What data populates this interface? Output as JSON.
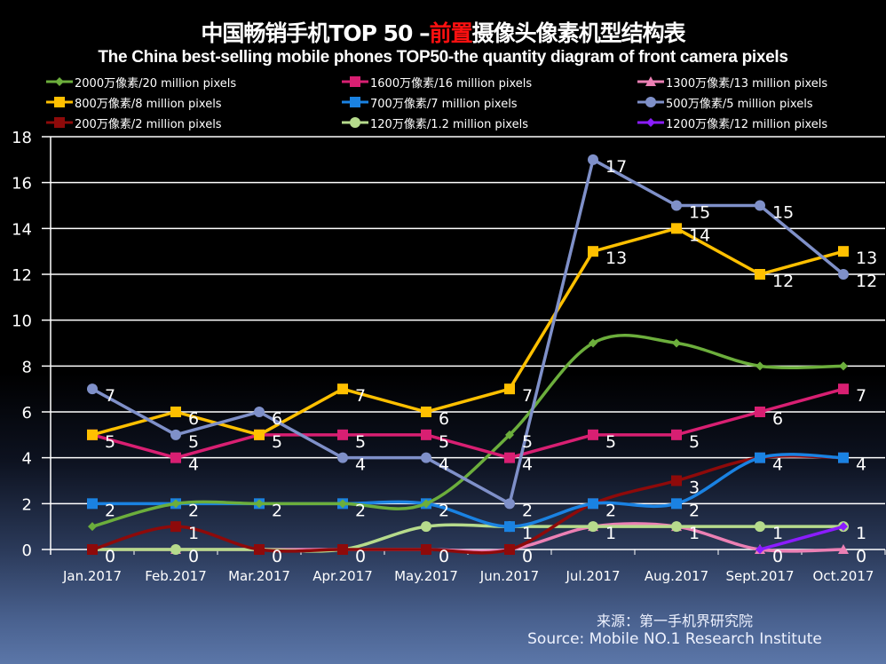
{
  "title": {
    "cn_part1": "中国畅销手机TOP 50 –",
    "cn_highlight": "前置",
    "cn_part2": "摄像头像素机型结构表",
    "en": "The China best-selling mobile phones TOP50-the quantity diagram of front camera pixels"
  },
  "source": {
    "cn": "来源：第一手机界研究院",
    "en": "Source: Mobile NO.1 Research Institute"
  },
  "chart_data": {
    "type": "line",
    "title": "中国畅销手机TOP 50 –前置摄像头像素机型结构表",
    "subtitle": "The China best-selling mobile phones TOP50-the quantity diagram of front camera pixels",
    "xlabel": "",
    "ylabel": "",
    "ylim": [
      0,
      18
    ],
    "yticks": [
      "0",
      "2",
      "4",
      "6",
      "8",
      "10",
      "12",
      "14",
      "16",
      "18"
    ],
    "grid": true,
    "legend_position": "top",
    "categories": [
      "Jan.2017",
      "Feb.2017",
      "Mar.2017",
      "Apr.2017",
      "May.2017",
      "Jun.2017",
      "Jul.2017",
      "Aug.2017",
      "Sept.2017",
      "Oct.2017"
    ],
    "series": [
      {
        "name": "2000万像素/20 million pixels",
        "color": "#6cae3c",
        "marker": "diamond",
        "smooth": true,
        "values": [
          1,
          2,
          2,
          2,
          2,
          5,
          9,
          9,
          8,
          8
        ],
        "labels": [
          null,
          null,
          null,
          null,
          null,
          "5",
          null,
          null,
          null,
          null
        ]
      },
      {
        "name": "1600万像素/16 million pixels",
        "color": "#d81f72",
        "marker": "square",
        "smooth": false,
        "values": [
          5,
          4,
          5,
          5,
          5,
          4,
          5,
          5,
          6,
          7
        ],
        "labels": [
          "5",
          "4",
          "5",
          "5",
          "5",
          "4",
          "5",
          "5",
          "6",
          "7"
        ]
      },
      {
        "name": "1300万像素/13 million pixels",
        "color": "#ec80b4",
        "marker": "triangle",
        "smooth": true,
        "values": [
          0,
          0,
          0,
          0,
          0,
          0,
          1,
          1,
          0,
          0
        ],
        "labels": [
          null,
          null,
          null,
          null,
          null,
          null,
          null,
          null,
          "0",
          "0"
        ]
      },
      {
        "name": "800万像素/8 million pixels",
        "color": "#ffc000",
        "marker": "square",
        "smooth": false,
        "values": [
          5,
          6,
          5,
          7,
          6,
          7,
          13,
          14,
          12,
          13
        ],
        "labels": [
          null,
          "6",
          null,
          "7",
          "6",
          "7",
          "13",
          "14",
          "12",
          "13"
        ]
      },
      {
        "name": "700万像素/7 million pixels",
        "color": "#1a82e2",
        "marker": "square",
        "smooth": true,
        "values": [
          2,
          2,
          2,
          2,
          2,
          1,
          2,
          2,
          4,
          4
        ],
        "labels": [
          "2",
          "2",
          "2",
          "2",
          "2",
          null,
          null,
          "2",
          null,
          null
        ]
      },
      {
        "name": "500万像素/5 million pixels",
        "color": "#7f90c9",
        "marker": "circle",
        "smooth": false,
        "values": [
          7,
          5,
          6,
          4,
          4,
          2,
          17,
          15,
          15,
          12
        ],
        "labels": [
          "7",
          "5",
          "6",
          "4",
          "4",
          "2",
          "17",
          "15",
          "15",
          "12"
        ]
      },
      {
        "name": "200万像素/2 million pixels",
        "color": "#8e0a0a",
        "marker": "square",
        "smooth": true,
        "values": [
          0,
          1,
          0,
          0,
          0,
          0,
          2,
          3,
          4,
          4
        ],
        "labels": [
          null,
          "1",
          null,
          null,
          "0",
          "0",
          "2",
          "3",
          "4",
          "4"
        ]
      },
      {
        "name": "120万像素/1.2 million pixels",
        "color": "#b6db8c",
        "marker": "circle",
        "smooth": true,
        "values": [
          0,
          0,
          0,
          0,
          1,
          1,
          1,
          1,
          1,
          1
        ],
        "labels": [
          "0",
          "0",
          "0",
          "0",
          null,
          "1",
          "1",
          "1",
          "1",
          null
        ]
      },
      {
        "name": "1200万像素/12 million pixels",
        "color": "#8b1cff",
        "marker": "diamond",
        "smooth": false,
        "values": [
          null,
          null,
          null,
          null,
          null,
          null,
          null,
          null,
          0,
          1
        ],
        "labels": [
          null,
          null,
          null,
          null,
          null,
          null,
          null,
          null,
          null,
          "1"
        ]
      }
    ]
  }
}
